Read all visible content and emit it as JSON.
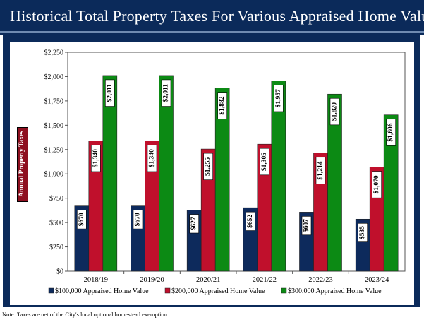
{
  "page": {
    "title": "Historical Total Property Taxes For Various Appraised Home Values",
    "note": "Note: Taxes are net of the City's local optional homestead exemption."
  },
  "colors": {
    "header": "#0b2a5a",
    "series": [
      "#0d2a5c",
      "#c0102c",
      "#0c8a14"
    ]
  },
  "chart_data": {
    "type": "bar",
    "title": "Historical Total Property Taxes For Various Appraised Home Values",
    "ylabel": "Annual Property Taxes",
    "xlabel": "",
    "categories": [
      "2018/19",
      "2019/20",
      "2020/21",
      "2021/22",
      "2022/23",
      "2023/24"
    ],
    "ylim": [
      0,
      2250
    ],
    "yticks": [
      0,
      250,
      500,
      750,
      1000,
      1250,
      1500,
      1750,
      2000,
      2250
    ],
    "ytick_labels": [
      "$0",
      "$250",
      "$500",
      "$750",
      "$1,000",
      "$1,250",
      "$1,500",
      "$1,750",
      "$2,000",
      "$2,250"
    ],
    "grid": false,
    "legend_position": "bottom",
    "series": [
      {
        "name": "$100,000 Appraised Home Value",
        "values": [
          670,
          670,
          627,
          652,
          607,
          535
        ],
        "labels": [
          "$670",
          "$670",
          "$627",
          "$652",
          "$607",
          "$535"
        ]
      },
      {
        "name": "$200,000 Appraised Home Value",
        "values": [
          1340,
          1340,
          1255,
          1305,
          1214,
          1070
        ],
        "labels": [
          "$1,340",
          "$1,340",
          "$1,255",
          "$1,305",
          "$1,214",
          "$1,070"
        ]
      },
      {
        "name": "$300,000 Appraised Home Value",
        "values": [
          2011,
          2011,
          1882,
          1957,
          1820,
          1606
        ],
        "labels": [
          "$2,011",
          "$2,011",
          "$1,882",
          "$1,957",
          "$1,820",
          "$1,606"
        ]
      }
    ]
  }
}
